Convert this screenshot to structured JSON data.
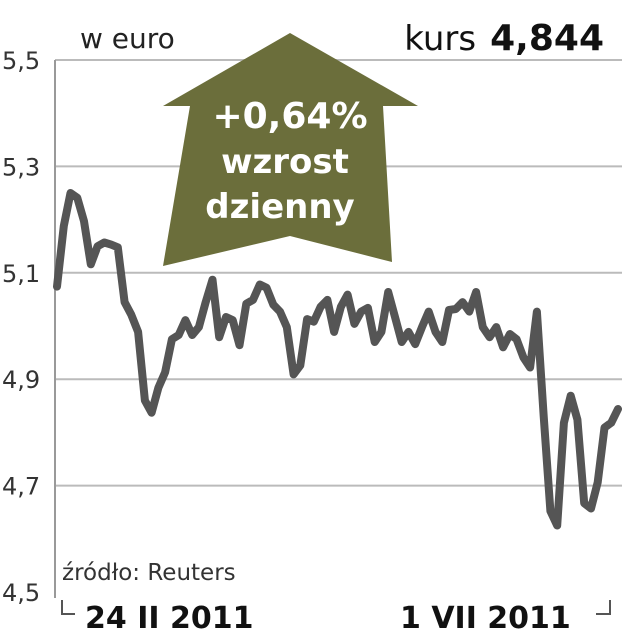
{
  "chart_data": {
    "type": "line",
    "unit_label": "w euro",
    "current": {
      "label": "kurs",
      "value": "4,844"
    },
    "change_badge": {
      "value": "+0,64%",
      "line1": "wzrost",
      "line2": "dzienny",
      "color": "#6b6e3b"
    },
    "source": "źródło: Reuters",
    "x_labels": [
      "24 II 2011",
      "1 VII 2011"
    ],
    "y_ticks": [
      "5,5",
      "5,3",
      "5,1",
      "4,9",
      "4,7",
      "4,5"
    ],
    "y_tick_values": [
      5.5,
      5.3,
      5.1,
      4.9,
      4.7,
      4.5
    ],
    "ylim": [
      4.5,
      5.5
    ],
    "grid": true,
    "line_color": "#555555",
    "grid_color": "#bbbbbb",
    "values": [
      5.074,
      5.188,
      5.25,
      5.241,
      5.197,
      5.116,
      5.15,
      5.157,
      5.153,
      5.148,
      5.045,
      5.021,
      4.989,
      4.86,
      4.837,
      4.884,
      4.913,
      4.975,
      4.983,
      5.011,
      4.983,
      4.998,
      5.045,
      5.087,
      4.979,
      5.017,
      5.011,
      4.964,
      5.042,
      5.049,
      5.078,
      5.072,
      5.04,
      5.027,
      4.998,
      4.909,
      4.926,
      5.013,
      5.008,
      5.036,
      5.049,
      4.989,
      5.036,
      5.059,
      5.004,
      5.027,
      5.034,
      4.97,
      4.989,
      5.064,
      5.017,
      4.97,
      4.989,
      4.966,
      4.998,
      5.027,
      4.989,
      4.97,
      5.03,
      5.032,
      5.045,
      5.027,
      5.064,
      4.998,
      4.979,
      4.998,
      4.96,
      4.985,
      4.975,
      4.941,
      4.922,
      5.027,
      4.83,
      4.652,
      4.625,
      4.818,
      4.869,
      4.824,
      4.667,
      4.657,
      4.706,
      4.809,
      4.818,
      4.844
    ]
  }
}
